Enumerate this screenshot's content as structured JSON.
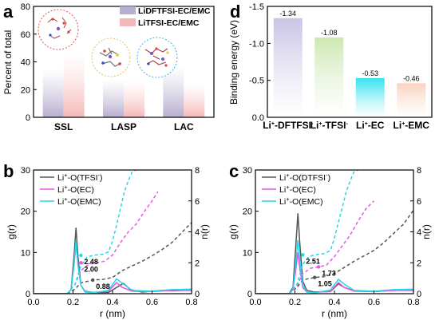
{
  "chart_data": [
    {
      "panel": "a",
      "type": "bar",
      "ylabel": "Percent of total",
      "ylim": [
        0,
        80
      ],
      "yticks": [
        0,
        20,
        40,
        60,
        80
      ],
      "categories": [
        "SSL",
        "LASP",
        "LAC"
      ],
      "series": [
        {
          "name": "LiDFTFSI-EC/EMC",
          "color": "#b8aed0",
          "values": [
            35,
            27,
            37
          ]
        },
        {
          "name": "LiTFSI-EC/EMC",
          "color": "#f6b6b6",
          "values": [
            47,
            27,
            25
          ]
        }
      ],
      "legend": "top-right",
      "insets": [
        "ssl-cluster-inset",
        "lasp-cluster-inset",
        "lac-cluster-inset"
      ]
    },
    {
      "panel": "d",
      "type": "bar",
      "ylabel": "Binding energy (eV)",
      "ylim": [
        0,
        -1.5
      ],
      "yticks": [
        "0.0",
        "-0.5",
        "-1.0",
        "-1.5"
      ],
      "inverted_y": true,
      "categories": [
        "Li+-DFTFSI-",
        "Li+-TFSI-",
        "Li+-EC",
        "Li+-EMC"
      ],
      "values": [
        -1.34,
        -1.08,
        -0.53,
        -0.46
      ],
      "value_labels": [
        "-1.34",
        "-1.08",
        "-0.53",
        "-0.46"
      ],
      "colors": [
        "#c9c3e6",
        "#cde8b2",
        "#33e2f2",
        "#f9d2bd"
      ]
    },
    {
      "panel": "b",
      "type": "line",
      "xlabel": "r (nm)",
      "ylabel_left": "g(r)",
      "ylabel_right": "n(r)",
      "xlim": [
        0,
        0.8
      ],
      "ylim_left": [
        0,
        30
      ],
      "ylim_right": [
        0,
        8
      ],
      "xticks": [
        "0.0",
        "0.2",
        "0.4",
        "0.6",
        "0.8"
      ],
      "yticks_left": [
        0,
        10,
        20,
        30
      ],
      "yticks_right": [
        0,
        2,
        4,
        6,
        8
      ],
      "legend": [
        {
          "sup": "+",
          "pre": "Li",
          "post": "-O(TFSI",
          "sup2": "-",
          "end": ")"
        },
        {
          "sup": "+",
          "pre": "Li",
          "post": "-O(EC)",
          "sup2": "",
          "end": ""
        },
        {
          "sup": "+",
          "pre": "Li",
          "post": "-O(EMC)",
          "sup2": "",
          "end": ""
        }
      ],
      "series": [
        {
          "name": "Li+-O(TFSI-)",
          "color": "#555555",
          "g": [
            [
              0,
              0
            ],
            [
              0.17,
              0
            ],
            [
              0.19,
              1
            ],
            [
              0.205,
              9
            ],
            [
              0.215,
              16
            ],
            [
              0.225,
              9
            ],
            [
              0.24,
              2
            ],
            [
              0.26,
              0.6
            ],
            [
              0.3,
              0.3
            ],
            [
              0.38,
              0.3
            ],
            [
              0.42,
              1.5
            ],
            [
              0.455,
              2.5
            ],
            [
              0.49,
              1
            ],
            [
              0.55,
              0.4
            ],
            [
              0.65,
              0.8
            ],
            [
              0.7,
              0.7
            ],
            [
              0.8,
              0.9
            ]
          ],
          "n": [
            [
              0.17,
              0
            ],
            [
              0.21,
              0.3
            ],
            [
              0.24,
              0.7
            ],
            [
              0.3,
              0.88
            ],
            [
              0.35,
              0.92
            ],
            [
              0.4,
              1.05
            ],
            [
              0.45,
              1.5
            ],
            [
              0.5,
              1.8
            ],
            [
              0.55,
              2.1
            ],
            [
              0.6,
              2.45
            ],
            [
              0.65,
              2.85
            ],
            [
              0.7,
              3.3
            ],
            [
              0.75,
              3.95
            ],
            [
              0.8,
              4.6
            ]
          ]
        },
        {
          "name": "Li+-O(EC)",
          "color": "#e855e8",
          "g": [
            [
              0,
              0
            ],
            [
              0.17,
              0
            ],
            [
              0.19,
              1
            ],
            [
              0.205,
              7
            ],
            [
              0.215,
              12
            ],
            [
              0.225,
              7
            ],
            [
              0.24,
              2
            ],
            [
              0.26,
              0.5
            ],
            [
              0.3,
              0.3
            ],
            [
              0.38,
              0.6
            ],
            [
              0.42,
              2.7
            ],
            [
              0.45,
              1.5
            ],
            [
              0.5,
              0.6
            ],
            [
              0.6,
              0.5
            ],
            [
              0.7,
              0.8
            ],
            [
              0.8,
              0.8
            ]
          ],
          "n": [
            [
              0.17,
              0
            ],
            [
              0.21,
              0.6
            ],
            [
              0.24,
              1.5
            ],
            [
              0.28,
              1.9
            ],
            [
              0.32,
              2.0
            ],
            [
              0.36,
              2.1
            ],
            [
              0.4,
              2.5
            ],
            [
              0.44,
              3.3
            ],
            [
              0.48,
              4.0
            ],
            [
              0.52,
              4.5
            ],
            [
              0.56,
              5.3
            ],
            [
              0.6,
              6.0
            ],
            [
              0.63,
              6.6
            ]
          ]
        },
        {
          "name": "Li+-O(EMC)",
          "color": "#22d8e8",
          "g": [
            [
              0,
              0
            ],
            [
              0.17,
              0
            ],
            [
              0.19,
              1
            ],
            [
              0.205,
              7
            ],
            [
              0.215,
              13
            ],
            [
              0.225,
              7
            ],
            [
              0.24,
              2
            ],
            [
              0.26,
              0.4
            ],
            [
              0.3,
              0.2
            ],
            [
              0.38,
              0.8
            ],
            [
              0.42,
              3.6
            ],
            [
              0.45,
              2.5
            ],
            [
              0.5,
              0.8
            ],
            [
              0.6,
              0.6
            ],
            [
              0.7,
              1.0
            ],
            [
              0.8,
              1.1
            ]
          ],
          "n": [
            [
              0.17,
              0
            ],
            [
              0.21,
              0.6
            ],
            [
              0.24,
              1.8
            ],
            [
              0.27,
              2.35
            ],
            [
              0.3,
              2.48
            ],
            [
              0.35,
              2.55
            ],
            [
              0.38,
              2.7
            ],
            [
              0.4,
              3.4
            ],
            [
              0.42,
              4.4
            ],
            [
              0.44,
              5.5
            ],
            [
              0.46,
              6.6
            ],
            [
              0.48,
              7.3
            ],
            [
              0.5,
              7.9
            ],
            [
              0.52,
              8.0
            ]
          ]
        }
      ],
      "annotations": [
        {
          "text": "2.48",
          "x": 0.24,
          "y": 2.48,
          "color": "#22d8e8"
        },
        {
          "text": "2.00",
          "x": 0.24,
          "y": 2.0,
          "color": "#e855e8"
        },
        {
          "text": "0.88",
          "x": 0.3,
          "y": 0.88,
          "color": "#555555"
        }
      ]
    },
    {
      "panel": "c",
      "type": "line",
      "xlabel": "r (nm)",
      "ylabel_left": "g(r)",
      "ylabel_right": "n(r)",
      "xlim": [
        0,
        0.8
      ],
      "ylim_left": [
        0,
        30
      ],
      "ylim_right": [
        0,
        8
      ],
      "xticks": [
        "0.0",
        "0.2",
        "0.4",
        "0.6",
        "0.8"
      ],
      "yticks_left": [
        0,
        10,
        20,
        30
      ],
      "yticks_right": [
        0,
        2,
        4,
        6,
        8
      ],
      "legend": [
        {
          "sup": "+",
          "pre": "Li",
          "post": "-O(DTFSI",
          "sup2": "-",
          "end": ")"
        },
        {
          "sup": "+",
          "pre": "Li",
          "post": "-O(EC)",
          "sup2": "",
          "end": ""
        },
        {
          "sup": "+",
          "pre": "Li",
          "post": "-O(EMC)",
          "sup2": "",
          "end": ""
        }
      ],
      "series": [
        {
          "name": "Li+-O(DTFSI-)",
          "color": "#555555",
          "g": [
            [
              0,
              0
            ],
            [
              0.17,
              0
            ],
            [
              0.19,
              1.5
            ],
            [
              0.205,
              12
            ],
            [
              0.215,
              19.5
            ],
            [
              0.225,
              12
            ],
            [
              0.24,
              3
            ],
            [
              0.26,
              0.8
            ],
            [
              0.3,
              0.4
            ],
            [
              0.38,
              0.5
            ],
            [
              0.42,
              2.4
            ],
            [
              0.45,
              1.5
            ],
            [
              0.5,
              0.7
            ],
            [
              0.6,
              0.5
            ],
            [
              0.7,
              0.8
            ],
            [
              0.8,
              0.9
            ]
          ],
          "n": [
            [
              0.17,
              0
            ],
            [
              0.21,
              0.4
            ],
            [
              0.24,
              0.9
            ],
            [
              0.3,
              1.05
            ],
            [
              0.35,
              1.1
            ],
            [
              0.4,
              1.3
            ],
            [
              0.45,
              1.7
            ],
            [
              0.5,
              2.1
            ],
            [
              0.55,
              2.45
            ],
            [
              0.6,
              2.8
            ],
            [
              0.65,
              3.3
            ],
            [
              0.7,
              3.9
            ],
            [
              0.75,
              4.5
            ],
            [
              0.8,
              5.4
            ]
          ]
        },
        {
          "name": "Li+-O(EC)",
          "color": "#e855e8",
          "g": [
            [
              0,
              0
            ],
            [
              0.17,
              0
            ],
            [
              0.19,
              1
            ],
            [
              0.205,
              6
            ],
            [
              0.215,
              10
            ],
            [
              0.225,
              6
            ],
            [
              0.24,
              1.5
            ],
            [
              0.26,
              0.4
            ],
            [
              0.3,
              0.3
            ],
            [
              0.38,
              0.6
            ],
            [
              0.42,
              2.7
            ],
            [
              0.45,
              1.5
            ],
            [
              0.5,
              0.6
            ],
            [
              0.6,
              0.5
            ],
            [
              0.7,
              0.8
            ],
            [
              0.8,
              0.8
            ]
          ],
          "n": [
            [
              0.17,
              0
            ],
            [
              0.21,
              0.5
            ],
            [
              0.24,
              1.3
            ],
            [
              0.28,
              1.65
            ],
            [
              0.32,
              1.73
            ],
            [
              0.36,
              1.85
            ],
            [
              0.4,
              2.4
            ],
            [
              0.44,
              3.1
            ],
            [
              0.48,
              3.8
            ],
            [
              0.52,
              4.7
            ],
            [
              0.56,
              5.5
            ],
            [
              0.6,
              6.0
            ]
          ]
        },
        {
          "name": "Li+-O(EMC)",
          "color": "#22d8e8",
          "g": [
            [
              0,
              0
            ],
            [
              0.17,
              0
            ],
            [
              0.19,
              1
            ],
            [
              0.205,
              8
            ],
            [
              0.215,
              13
            ],
            [
              0.225,
              8
            ],
            [
              0.24,
              2
            ],
            [
              0.26,
              0.4
            ],
            [
              0.3,
              0.2
            ],
            [
              0.38,
              0.9
            ],
            [
              0.42,
              3.5
            ],
            [
              0.45,
              2.3
            ],
            [
              0.5,
              0.8
            ],
            [
              0.6,
              0.6
            ],
            [
              0.7,
              1.0
            ],
            [
              0.8,
              1.1
            ]
          ],
          "n": [
            [
              0.17,
              0
            ],
            [
              0.21,
              0.6
            ],
            [
              0.24,
              1.9
            ],
            [
              0.27,
              2.4
            ],
            [
              0.3,
              2.51
            ],
            [
              0.35,
              2.6
            ],
            [
              0.38,
              2.8
            ],
            [
              0.4,
              3.6
            ],
            [
              0.42,
              4.6
            ],
            [
              0.44,
              5.6
            ],
            [
              0.46,
              6.6
            ],
            [
              0.48,
              7.3
            ],
            [
              0.5,
              7.9
            ],
            [
              0.52,
              8.0
            ]
          ]
        }
      ],
      "annotations": [
        {
          "text": "2.51",
          "x": 0.24,
          "y": 2.51,
          "color": "#22d8e8"
        },
        {
          "text": "1.73",
          "x": 0.32,
          "y": 1.73,
          "color": "#e855e8"
        },
        {
          "text": "1.05",
          "x": 0.3,
          "y": 1.05,
          "color": "#555555"
        }
      ]
    }
  ]
}
